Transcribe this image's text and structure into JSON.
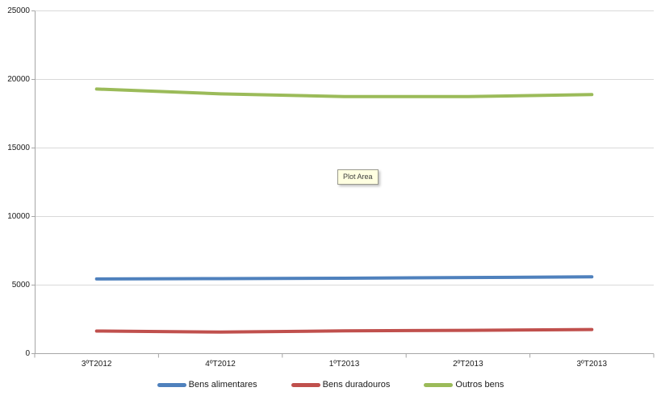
{
  "chart_data": {
    "type": "line",
    "categories": [
      "3ºT2012",
      "4ºT2012",
      "1ºT2013",
      "2ºT2013",
      "3ºT2013"
    ],
    "series": [
      {
        "name": "Bens alimentares",
        "color": "#4f81bd",
        "values": [
          5450,
          5470,
          5500,
          5550,
          5600
        ]
      },
      {
        "name": "Bens duradouros",
        "color": "#c0504d",
        "values": [
          1650,
          1570,
          1660,
          1700,
          1760
        ]
      },
      {
        "name": "Outros bens",
        "color": "#9bbb59",
        "values": [
          19300,
          18950,
          18750,
          18750,
          18900
        ]
      }
    ],
    "title": "",
    "xlabel": "",
    "ylabel": "",
    "ylim": [
      0,
      25000
    ],
    "yticks": [
      0,
      5000,
      10000,
      15000,
      20000,
      25000
    ],
    "grid": true,
    "legend_position": "bottom"
  },
  "tooltip": {
    "label": "Plot Area"
  },
  "colors": {
    "gridline": "#d9d9d9",
    "axis": "#a6a6a6",
    "background": "#ffffff",
    "tick_text": "#1a1a1a",
    "tooltip_bg": "#ffffe1",
    "tooltip_border": "#9a9a8e"
  }
}
